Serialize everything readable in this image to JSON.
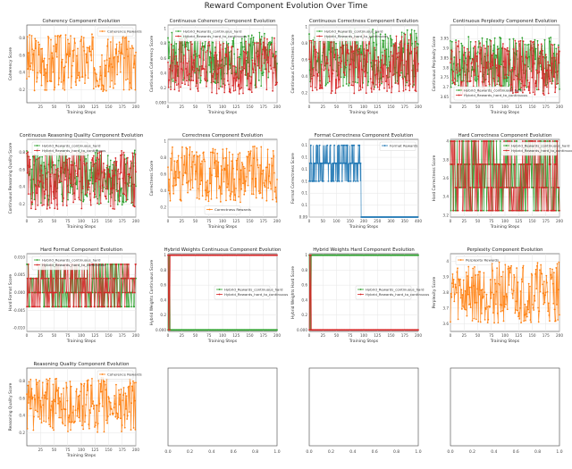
{
  "figure_title": "Reward Component Evolution Over Time",
  "colors": {
    "orange": "#ff7f0e",
    "green": "#2ca02c",
    "red": "#d62728",
    "blue": "#1f77b4",
    "grid": "#e6e6e6",
    "axis": "#444444"
  },
  "chart_data": [
    {
      "id": "p1",
      "type": "line",
      "title": "Coherency Component Evolution",
      "xlabel": "Training Steps",
      "ylabel": "Coherency Score",
      "xlim": [
        0,
        200
      ],
      "ylim": [
        0.05,
        0.95
      ],
      "xticks": [
        25,
        50,
        75,
        100,
        125,
        150,
        175,
        200
      ],
      "yticks": [
        0.2,
        0.4,
        0.6,
        0.8
      ],
      "legend_loc": "upper-right",
      "series": [
        {
          "name": "Coherence Rewards",
          "color": "orange",
          "kind": "noise",
          "n": 200,
          "base": 0.52,
          "amp": 0.34,
          "seed": 3
        }
      ]
    },
    {
      "id": "p2",
      "type": "line",
      "title": "Continuous Coherency Component Evolution",
      "xlabel": "Training Steps",
      "ylabel": "Continuous Coherency Score",
      "xlim": [
        0,
        200
      ],
      "ylim": [
        0.0,
        1.05
      ],
      "xticks": [
        0,
        25,
        50,
        75,
        100,
        125,
        150,
        175,
        200
      ],
      "yticks": [
        0.0,
        0.2,
        0.4,
        0.6,
        0.8,
        1.0
      ],
      "legend_loc": "upper-left",
      "series": [
        {
          "name": "Hybrid_Rewards_continuous_hard",
          "color": "green",
          "kind": "noise",
          "n": 200,
          "base": 0.58,
          "amp": 0.38,
          "seed": 5
        },
        {
          "name": "Hybrid_Rewards_hard_to_continuous",
          "color": "red",
          "kind": "noise",
          "n": 200,
          "base": 0.5,
          "amp": 0.38,
          "seed": 7
        }
      ]
    },
    {
      "id": "p3",
      "type": "line",
      "title": "Continuous Correctness Component Evolution",
      "xlabel": "Training Steps",
      "ylabel": "Continuous Correctness Score",
      "xlim": [
        0,
        200
      ],
      "ylim": [
        0.08,
        1.02
      ],
      "xticks": [
        0,
        25,
        50,
        75,
        100,
        125,
        150,
        175,
        200
      ],
      "yticks": [
        0.2,
        0.4,
        0.6,
        0.8,
        1.0
      ],
      "legend_loc": "upper-left",
      "series": [
        {
          "name": "Hybrid_Rewards_continuous_hard",
          "color": "green",
          "kind": "noise",
          "n": 200,
          "base": 0.62,
          "amp": 0.36,
          "seed": 11
        },
        {
          "name": "Hybrid_Rewards_hard_to_continuous",
          "color": "red",
          "kind": "noise",
          "n": 200,
          "base": 0.55,
          "amp": 0.36,
          "seed": 13
        }
      ]
    },
    {
      "id": "p4",
      "type": "line",
      "title": "Continuous Perplexity Component Evolution",
      "xlabel": "Training Steps",
      "ylabel": "Continuous Perplexity Score",
      "xlim": [
        0,
        200
      ],
      "ylim": [
        3.62,
        4.02
      ],
      "xticks": [
        0,
        25,
        50,
        75,
        100,
        125,
        150,
        175,
        200
      ],
      "yticks": [
        3.65,
        3.7,
        3.75,
        3.8,
        3.85,
        3.9,
        3.95
      ],
      "legend_loc": "lower-left",
      "series": [
        {
          "name": "Hybrid_Rewards_continuous_hard",
          "color": "green",
          "kind": "noise",
          "n": 200,
          "base": 3.82,
          "amp": 0.14,
          "seed": 17
        },
        {
          "name": "Hybrid_Rewards_hard_to_continuous",
          "color": "red",
          "kind": "noise",
          "n": 200,
          "base": 3.8,
          "amp": 0.14,
          "seed": 19
        }
      ]
    },
    {
      "id": "p5",
      "type": "line",
      "title": "Continuous Reasoning Quality Component Evolution",
      "xlabel": "Training Steps",
      "ylabel": "Continuous Reasoning Quality Score",
      "xlim": [
        0,
        200
      ],
      "ylim": [
        0.05,
        0.95
      ],
      "xticks": [
        0,
        25,
        50,
        75,
        100,
        125,
        150,
        175,
        200
      ],
      "yticks": [
        0.2,
        0.4,
        0.6,
        0.8
      ],
      "legend_loc": "upper-left",
      "series": [
        {
          "name": "Hybrid_Rewards_continuous_hard",
          "color": "green",
          "kind": "noise",
          "n": 200,
          "base": 0.52,
          "amp": 0.34,
          "seed": 23
        },
        {
          "name": "Hybrid_Rewards_hard_to_continuous",
          "color": "red",
          "kind": "noise",
          "n": 200,
          "base": 0.48,
          "amp": 0.34,
          "seed": 29
        }
      ]
    },
    {
      "id": "p6",
      "type": "line",
      "title": "Correctness Component Evolution",
      "xlabel": "Training Steps",
      "ylabel": "Correctness Score",
      "xlim": [
        0,
        200
      ],
      "ylim": [
        0.08,
        1.02
      ],
      "xticks": [
        0,
        25,
        50,
        75,
        100,
        125,
        150,
        175,
        200
      ],
      "yticks": [
        0.2,
        0.4,
        0.6,
        0.8,
        1.0
      ],
      "legend_loc": "lower-center",
      "series": [
        {
          "name": "Correctness Rewards",
          "color": "orange",
          "kind": "noise",
          "n": 200,
          "base": 0.6,
          "amp": 0.34,
          "seed": 31
        }
      ]
    },
    {
      "id": "p7",
      "type": "line",
      "title": "Format Correctness Component Evolution",
      "xlabel": "Training Steps",
      "ylabel": "Format Correctness Score",
      "xlim": [
        0,
        400
      ],
      "ylim": [
        0.094,
        0.1005
      ],
      "xticks": [
        0,
        50,
        100,
        150,
        200,
        250,
        300,
        350,
        400
      ],
      "yticks": [
        0.094,
        0.095,
        0.096,
        0.097,
        0.098,
        0.099,
        0.1
      ],
      "legend_loc": "upper-right",
      "series": [
        {
          "name": "Format Rewards",
          "color": "blue",
          "kind": "format",
          "n": 400,
          "seed": 37
        }
      ]
    },
    {
      "id": "p8",
      "type": "line",
      "title": "Hard Correctness Component Evolution",
      "xlabel": "Training Steps",
      "ylabel": "Hard Correctness Score",
      "xlim": [
        0,
        200
      ],
      "ylim": [
        3.18,
        4.02
      ],
      "xticks": [
        0,
        25,
        50,
        75,
        100,
        125,
        150,
        175,
        200
      ],
      "yticks": [
        3.2,
        3.4,
        3.6,
        3.8,
        4.0
      ],
      "legend_loc": "upper-right",
      "series": [
        {
          "name": "Hybrid_Rewards_continuous_hard",
          "color": "green",
          "kind": "levels",
          "levels": [
            3.25,
            3.5,
            3.75,
            4.0
          ],
          "n": 200,
          "seed": 41
        },
        {
          "name": "Hybrid_Rewards_hard_to_continuous",
          "color": "red",
          "kind": "levels",
          "levels": [
            3.25,
            3.5,
            3.75,
            4.0
          ],
          "n": 200,
          "seed": 43
        }
      ]
    },
    {
      "id": "p9",
      "type": "line",
      "title": "Hard Format Component Evolution",
      "xlabel": "Training Steps",
      "ylabel": "Hard Format Score",
      "xlim": [
        0,
        200
      ],
      "ylim": [
        -0.011,
        0.011
      ],
      "xticks": [
        0,
        25,
        50,
        75,
        100,
        125,
        150,
        175,
        200
      ],
      "yticks": [
        -0.01,
        -0.005,
        0.0,
        0.005,
        0.01
      ],
      "legend_loc": "upper-left",
      "series": [
        {
          "name": "Hybrid_Rewards_continuous_hard",
          "color": "green",
          "kind": "levels",
          "levels": [
            -0.004,
            0.0,
            0.004,
            0.008
          ],
          "n": 200,
          "seed": 47
        },
        {
          "name": "Hybrid_Rewards_hard_to_continuous",
          "color": "red",
          "kind": "levels",
          "levels": [
            -0.004,
            0.0,
            0.004,
            0.008
          ],
          "n": 200,
          "seed": 53
        }
      ]
    },
    {
      "id": "p10",
      "type": "line",
      "title": "Hybrid Weights Continuous Component Evolution",
      "xlabel": "Training Steps",
      "ylabel": "Hybrid Weights Continuous Score",
      "xlim": [
        0,
        200
      ],
      "ylim": [
        -0.02,
        1.02
      ],
      "xticks": [
        0,
        25,
        50,
        75,
        100,
        125,
        150,
        175,
        200
      ],
      "yticks": [
        0.0,
        0.2,
        0.4,
        0.6,
        0.8,
        1.0
      ],
      "legend_loc": "center-right",
      "series": [
        {
          "name": "Hybrid_Rewards_continuous_hard",
          "color": "green",
          "kind": "flat",
          "n": 200,
          "value": 0.0,
          "spikes": [
            [
              1,
              1.0
            ],
            [
              2,
              0.0
            ],
            [
              3,
              1.0
            ],
            [
              4,
              0.0
            ]
          ]
        },
        {
          "name": "Hybrid_Rewards_hard_to_continuous",
          "color": "red",
          "kind": "flat",
          "n": 200,
          "value": 1.0,
          "spikes": [
            [
              0,
              1.0
            ],
            [
              1,
              0.0
            ],
            [
              2,
              1.0
            ],
            [
              3,
              0.0
            ],
            [
              4,
              1.0
            ]
          ]
        }
      ]
    },
    {
      "id": "p11",
      "type": "line",
      "title": "Hybrid Weights Hard Component Evolution",
      "xlabel": "Training Steps",
      "ylabel": "Hybrid Weights Hard Score",
      "xlim": [
        0,
        200
      ],
      "ylim": [
        -0.02,
        1.02
      ],
      "xticks": [
        0,
        25,
        50,
        75,
        100,
        125,
        150,
        175,
        200
      ],
      "yticks": [
        0.0,
        0.2,
        0.4,
        0.6,
        0.8,
        1.0
      ],
      "legend_loc": "center-right",
      "series": [
        {
          "name": "Hybrid_Rewards_continuous_hard",
          "color": "green",
          "kind": "flat",
          "n": 200,
          "value": 1.0,
          "spikes": [
            [
              0,
              1.0
            ],
            [
              1,
              0.0
            ],
            [
              2,
              1.0
            ],
            [
              3,
              0.0
            ],
            [
              4,
              1.0
            ]
          ]
        },
        {
          "name": "Hybrid_Rewards_hard_to_continuous",
          "color": "red",
          "kind": "flat",
          "n": 200,
          "value": 0.0,
          "spikes": [
            [
              1,
              1.0
            ],
            [
              2,
              0.0
            ],
            [
              3,
              1.0
            ],
            [
              4,
              0.0
            ]
          ]
        }
      ]
    },
    {
      "id": "p12",
      "type": "line",
      "title": "Perplexity Component Evolution",
      "xlabel": "Training Steps",
      "ylabel": "Perplexity Score",
      "xlim": [
        0,
        200
      ],
      "ylim": [
        3.55,
        4.05
      ],
      "xticks": [
        0,
        25,
        50,
        75,
        100,
        125,
        150,
        175,
        200
      ],
      "yticks": [
        3.6,
        3.7,
        3.8,
        3.9,
        4.0
      ],
      "legend_loc": "upper-left",
      "series": [
        {
          "name": "Perplexity Rewards",
          "color": "orange",
          "kind": "noise",
          "n": 200,
          "base": 3.8,
          "amp": 0.2,
          "seed": 59
        }
      ]
    },
    {
      "id": "p13",
      "type": "line",
      "title": "Reasoning Quality Component Evolution",
      "xlabel": "Training Steps",
      "ylabel": "Reasoning Quality Score",
      "xlim": [
        0,
        200
      ],
      "ylim": [
        0.05,
        0.95
      ],
      "xticks": [
        25,
        50,
        75,
        100,
        125,
        150,
        175,
        200
      ],
      "yticks": [
        0.2,
        0.4,
        0.6,
        0.8
      ],
      "legend_loc": "upper-right",
      "series": [
        {
          "name": "Coherence Rewards",
          "color": "orange",
          "kind": "noise",
          "n": 200,
          "base": 0.52,
          "amp": 0.32,
          "seed": 61
        }
      ]
    },
    {
      "id": "p14",
      "type": "empty",
      "xticks": [
        "0.0",
        "0.2",
        "0.4",
        "0.6",
        "0.8",
        "1.0"
      ]
    },
    {
      "id": "p15",
      "type": "empty",
      "xticks": [
        "0.0",
        "0.2",
        "0.4",
        "0.6",
        "0.8",
        "1.0"
      ]
    },
    {
      "id": "p16",
      "type": "empty",
      "xticks": [
        "0.0",
        "0.2",
        "0.4",
        "0.6",
        "0.8",
        "1.0"
      ]
    }
  ]
}
